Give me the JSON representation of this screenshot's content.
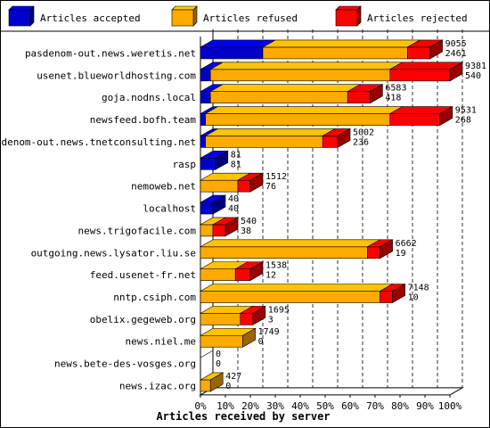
{
  "chart_data": {
    "type": "bar",
    "stacked": true,
    "orientation": "horizontal",
    "title": "",
    "xlabel": "Articles received by server",
    "ylabel": "",
    "xlim": [
      0,
      100
    ],
    "x_unit": "%",
    "grid": "vertical dashed every 10%",
    "legend_placement": "top",
    "ticks": [
      "0%",
      "10%",
      "20%",
      "30%",
      "40%",
      "50%",
      "60%",
      "70%",
      "80%",
      "90%",
      "100%"
    ],
    "categories": [
      "pasdenom-out.news.weretis.net",
      "usenet.blueworldhosting.com",
      "goja.nodns.local",
      "newsfeed.bofh.team",
      "pasdenom-out.news.tnetconsulting.net",
      "rasp",
      "nemoweb.net",
      "localhost",
      "news.trigofacile.com",
      "outgoing.news.lysator.liu.se",
      "feed.usenet-fr.net",
      "nntp.csiph.com",
      "obelix.gegeweb.org",
      "news.niel.me",
      "news.bete-des-vosges.org",
      "news.izac.org"
    ],
    "series": [
      {
        "name": "Articles accepted",
        "color": "#0000cc",
        "values": [
          25,
          4,
          4,
          2,
          2,
          6,
          0,
          5,
          0,
          0,
          0,
          0,
          0,
          0,
          0,
          0
        ]
      },
      {
        "name": "Articles refused",
        "color": "#ffaa00",
        "values": [
          58,
          72,
          55,
          74,
          47,
          0,
          15,
          0,
          5,
          67,
          14,
          72,
          16,
          17,
          0,
          4
        ]
      },
      {
        "name": "Articles rejected",
        "color": "#ff0000",
        "values": [
          9,
          24,
          9,
          20,
          6,
          0,
          5,
          0,
          5,
          5,
          6,
          5,
          5,
          0,
          0,
          0
        ]
      }
    ],
    "bar_labels": [
      [
        "9055",
        "2461"
      ],
      [
        "9381",
        "540"
      ],
      [
        "6583",
        "418"
      ],
      [
        "9531",
        "268"
      ],
      [
        "5002",
        "236"
      ],
      [
        "81",
        "81"
      ],
      [
        "1512",
        "76"
      ],
      [
        "40",
        "40"
      ],
      [
        "540",
        "38"
      ],
      [
        "6662",
        "19"
      ],
      [
        "1538",
        "12"
      ],
      [
        "7148",
        "10"
      ],
      [
        "1695",
        "3"
      ],
      [
        "1749",
        "0"
      ],
      [
        "0",
        "0"
      ],
      [
        "427",
        "0"
      ]
    ]
  }
}
